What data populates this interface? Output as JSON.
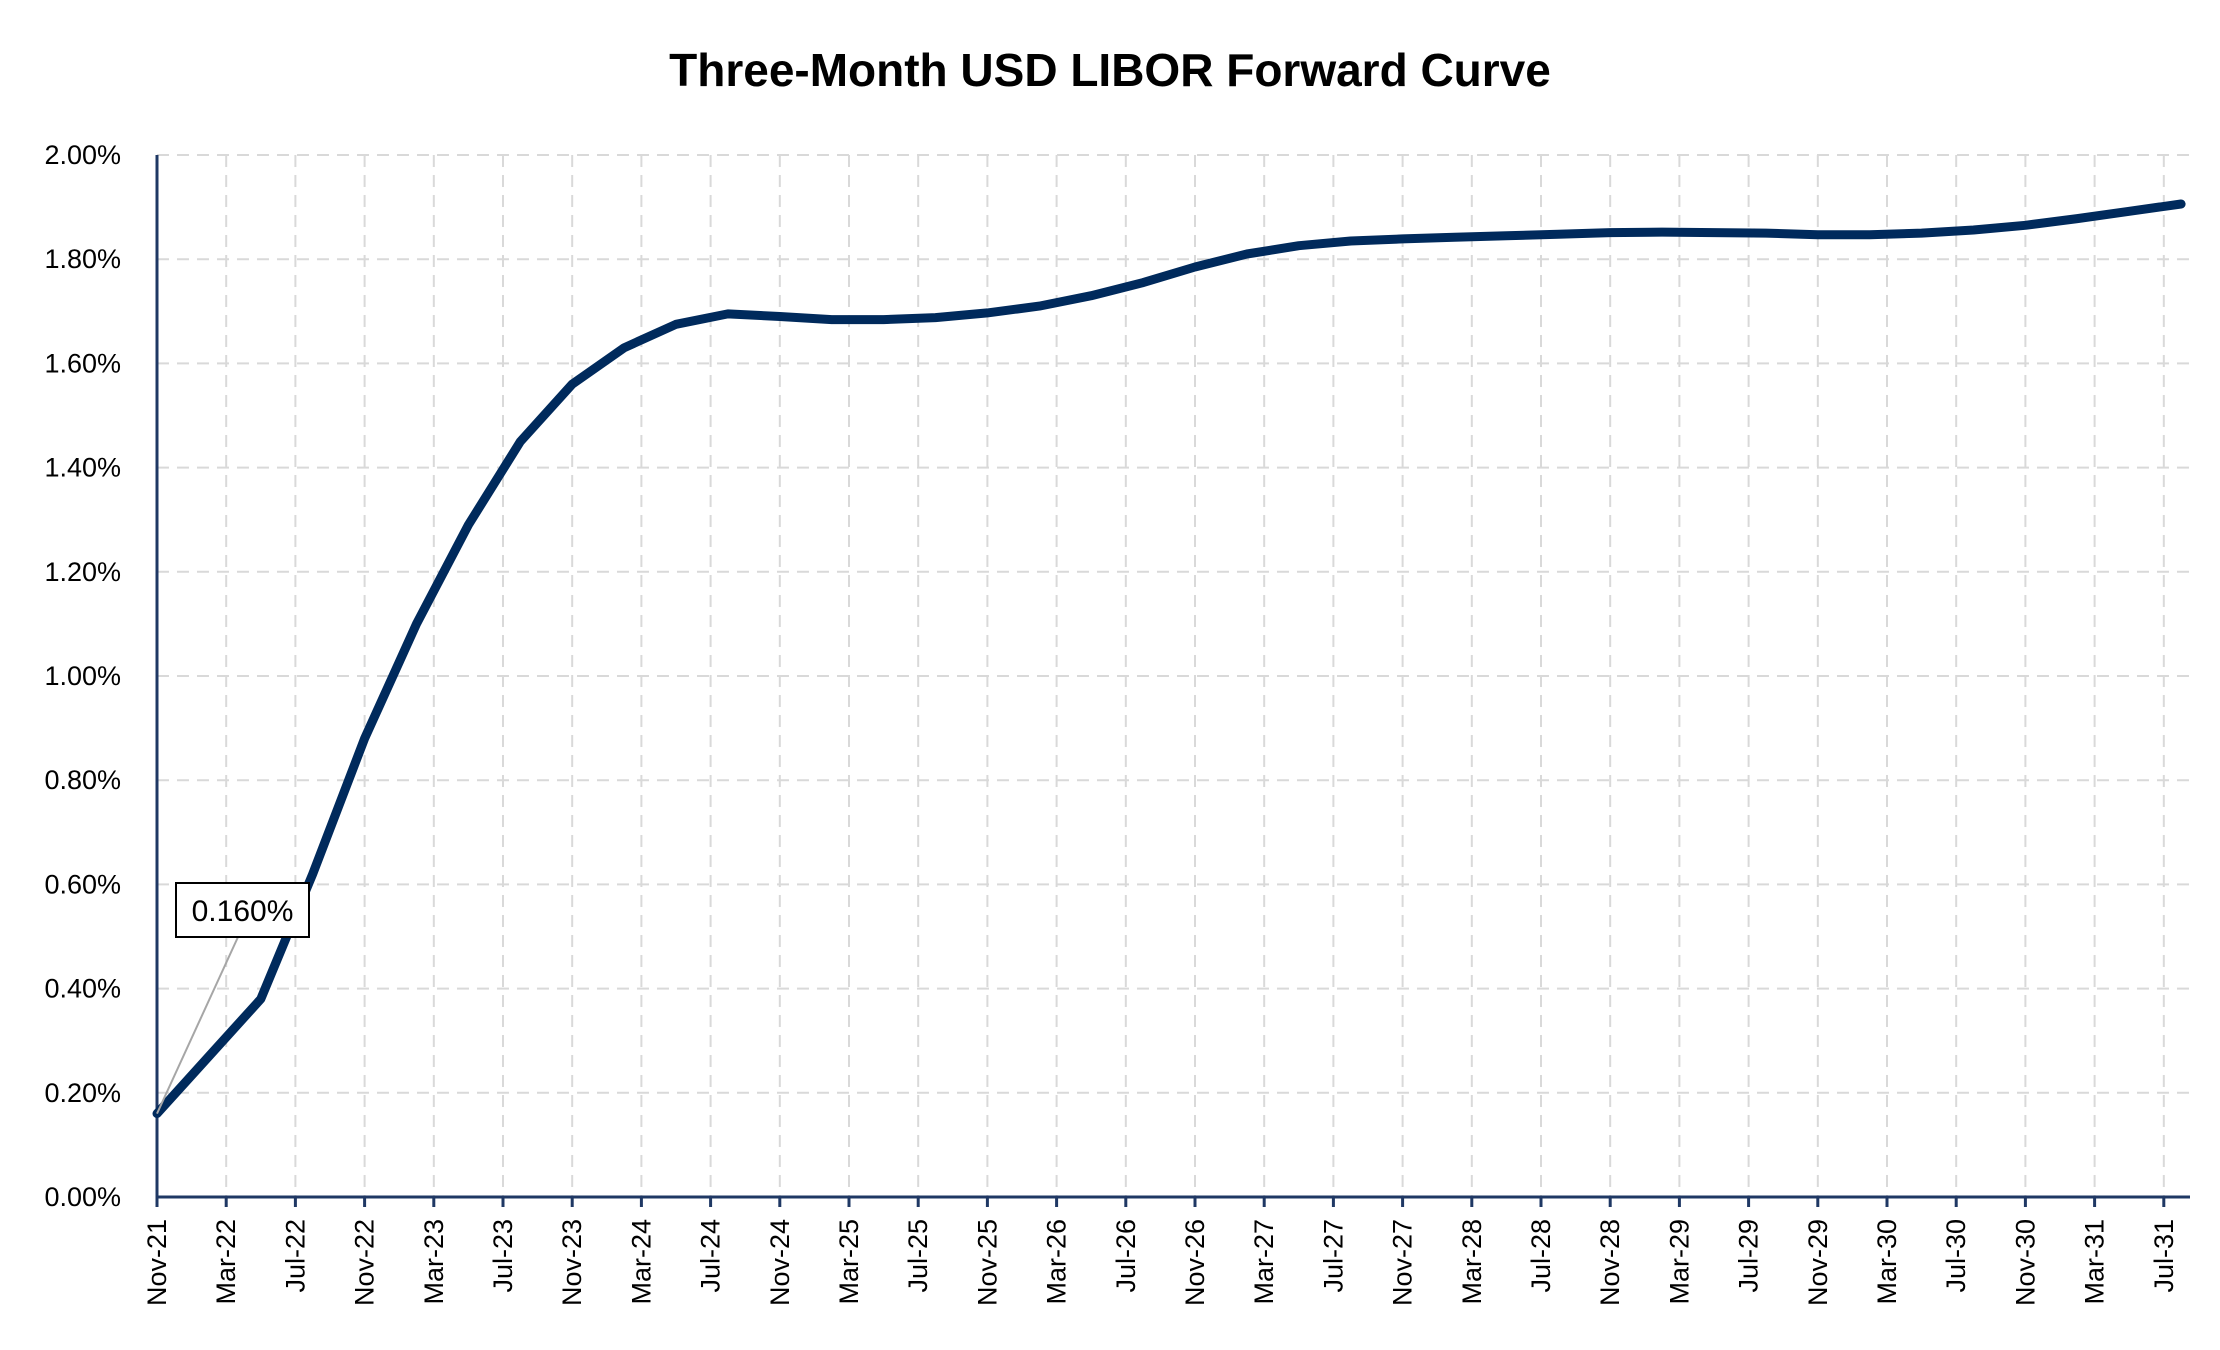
{
  "chart_data": {
    "type": "line",
    "title": "Three-Month USD LIBOR Forward Curve",
    "xlabel": "",
    "ylabel": "",
    "ylim": [
      0,
      2.0
    ],
    "y_ticks": [
      "0.00%",
      "0.20%",
      "0.40%",
      "0.60%",
      "0.80%",
      "1.00%",
      "1.20%",
      "1.40%",
      "1.60%",
      "1.80%",
      "2.00%"
    ],
    "x_tick_labels": [
      "Nov-21",
      "Mar-22",
      "Jul-22",
      "Nov-22",
      "Mar-23",
      "Jul-23",
      "Nov-23",
      "Mar-24",
      "Jul-24",
      "Nov-24",
      "Mar-25",
      "Jul-25",
      "Nov-25",
      "Mar-26",
      "Jul-26",
      "Nov-26",
      "Mar-27",
      "Jul-27",
      "Nov-27",
      "Mar-28",
      "Jul-28",
      "Nov-28",
      "Mar-29",
      "Jul-29",
      "Nov-29",
      "Mar-30",
      "Jul-30",
      "Nov-30",
      "Mar-31",
      "Jul-31"
    ],
    "grid": true,
    "legend": "none",
    "series": [
      {
        "color": "#002a5c",
        "x": [
          "Nov-21",
          "Feb-22",
          "May-22",
          "Aug-22",
          "Nov-22",
          "Feb-23",
          "May-23",
          "Aug-23",
          "Nov-23",
          "Feb-24",
          "May-24",
          "Aug-24",
          "Nov-24",
          "Feb-25",
          "May-25",
          "Aug-25",
          "Nov-25",
          "Feb-26",
          "May-26",
          "Aug-26",
          "Nov-26",
          "Feb-27",
          "May-27",
          "Aug-27",
          "Nov-27",
          "Feb-28",
          "May-28",
          "Aug-28",
          "Nov-28",
          "Feb-29",
          "May-29",
          "Aug-29",
          "Nov-29",
          "Feb-30",
          "May-30",
          "Aug-30",
          "Nov-30",
          "Feb-31",
          "May-31",
          "Aug-31"
        ],
        "values": [
          0.16,
          0.27,
          0.38,
          0.62,
          0.88,
          1.1,
          1.29,
          1.45,
          1.56,
          1.63,
          1.675,
          1.695,
          1.69,
          1.684,
          1.684,
          1.688,
          1.697,
          1.71,
          1.73,
          1.755,
          1.785,
          1.81,
          1.826,
          1.835,
          1.839,
          1.842,
          1.845,
          1.848,
          1.851,
          1.852,
          1.851,
          1.85,
          1.847,
          1.847,
          1.85,
          1.856,
          1.865,
          1.878,
          1.892,
          1.906
        ]
      }
    ],
    "annotations": [
      {
        "text": "0.160%",
        "x": "Nov-21",
        "y": 0.16
      }
    ]
  }
}
